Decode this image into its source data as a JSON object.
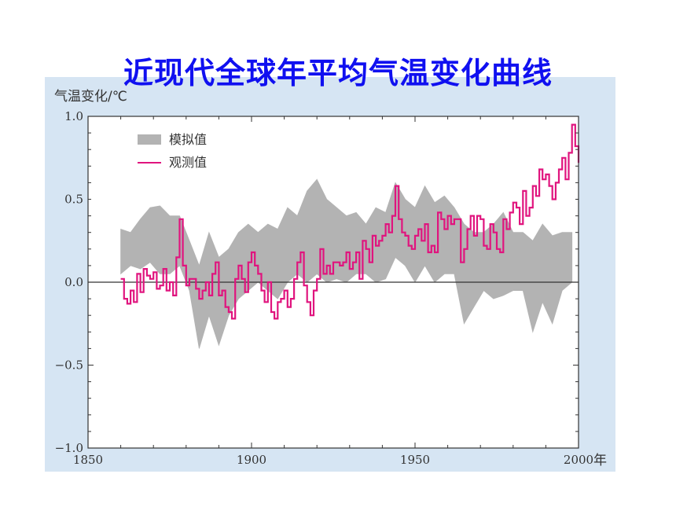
{
  "slide": {
    "title": "近现代全球年平均气温变化曲线"
  },
  "colors": {
    "title": "#1010f0",
    "panel_background": "#d6e5f3",
    "plot_background": "#ffffff",
    "simulated_band": "#b3b3b3",
    "observed_line": "#e0147e",
    "axis": "#333333"
  },
  "chart_data": {
    "type": "line",
    "title": "",
    "ylabel": "气温变化/℃",
    "xlabel": "年",
    "xlim": [
      1850,
      2000
    ],
    "ylim": [
      -1.0,
      1.0
    ],
    "xticks": [
      1850,
      1900,
      1950,
      2000
    ],
    "xtick_labels": [
      "1850",
      "1900",
      "1950",
      "2000"
    ],
    "yticks": [
      1.0,
      0.5,
      0.0,
      -0.5,
      -1.0
    ],
    "ytick_labels": [
      "1.0",
      "0.5",
      "0.0",
      "−0.5",
      "−1.0"
    ],
    "zero_line": true,
    "grid": false,
    "legend_position": "top-left",
    "legend": [
      "模拟值",
      "观测值"
    ],
    "series": [
      {
        "name": "模拟值",
        "kind": "band",
        "x": [
          1860,
          1863,
          1866,
          1869,
          1872,
          1875,
          1878,
          1881,
          1884,
          1887,
          1890,
          1893,
          1896,
          1899,
          1902,
          1905,
          1908,
          1911,
          1914,
          1917,
          1920,
          1923,
          1926,
          1929,
          1932,
          1935,
          1938,
          1941,
          1944,
          1947,
          1950,
          1953,
          1956,
          1959,
          1962,
          1965,
          1968,
          1971,
          1974,
          1977,
          1980,
          1983,
          1986,
          1989,
          1992,
          1995,
          1998
        ],
        "low": [
          0.05,
          0.1,
          0.08,
          0.12,
          0.05,
          0.05,
          0.1,
          -0.05,
          -0.4,
          -0.2,
          -0.38,
          -0.2,
          -0.1,
          -0.05,
          0.0,
          -0.05,
          -0.1,
          0.0,
          0.05,
          0.0,
          0.05,
          0.0,
          0.02,
          0.0,
          0.05,
          0.05,
          0.0,
          0.02,
          0.15,
          0.1,
          0.0,
          0.1,
          0.0,
          0.05,
          0.05,
          -0.25,
          -0.15,
          -0.05,
          -0.1,
          -0.08,
          -0.05,
          -0.05,
          -0.3,
          -0.12,
          -0.25,
          -0.05,
          0.0
        ],
        "high": [
          0.32,
          0.3,
          0.38,
          0.45,
          0.46,
          0.4,
          0.4,
          0.25,
          0.1,
          0.3,
          0.15,
          0.2,
          0.3,
          0.35,
          0.3,
          0.35,
          0.32,
          0.45,
          0.4,
          0.55,
          0.62,
          0.5,
          0.45,
          0.4,
          0.42,
          0.35,
          0.45,
          0.42,
          0.6,
          0.5,
          0.45,
          0.58,
          0.48,
          0.52,
          0.45,
          0.35,
          0.3,
          0.3,
          0.35,
          0.42,
          0.3,
          0.3,
          0.25,
          0.35,
          0.28,
          0.3,
          0.3
        ]
      },
      {
        "name": "观测值",
        "kind": "line",
        "x": [
          1860,
          1861,
          1862,
          1863,
          1864,
          1865,
          1866,
          1867,
          1868,
          1869,
          1870,
          1871,
          1872,
          1873,
          1874,
          1875,
          1876,
          1877,
          1878,
          1879,
          1880,
          1881,
          1882,
          1883,
          1884,
          1885,
          1886,
          1887,
          1888,
          1889,
          1890,
          1891,
          1892,
          1893,
          1894,
          1895,
          1896,
          1897,
          1898,
          1899,
          1900,
          1901,
          1902,
          1903,
          1904,
          1905,
          1906,
          1907,
          1908,
          1909,
          1910,
          1911,
          1912,
          1913,
          1914,
          1915,
          1916,
          1917,
          1918,
          1919,
          1920,
          1921,
          1922,
          1923,
          1924,
          1925,
          1926,
          1927,
          1928,
          1929,
          1930,
          1931,
          1932,
          1933,
          1934,
          1935,
          1936,
          1937,
          1938,
          1939,
          1940,
          1941,
          1942,
          1943,
          1944,
          1945,
          1946,
          1947,
          1948,
          1949,
          1950,
          1951,
          1952,
          1953,
          1954,
          1955,
          1956,
          1957,
          1958,
          1959,
          1960,
          1961,
          1962,
          1963,
          1964,
          1965,
          1966,
          1967,
          1968,
          1969,
          1970,
          1971,
          1972,
          1973,
          1974,
          1975,
          1976,
          1977,
          1978,
          1979,
          1980,
          1981,
          1982,
          1983,
          1984,
          1985,
          1986,
          1987,
          1988,
          1989,
          1990,
          1991,
          1992,
          1993,
          1994,
          1995,
          1996,
          1997,
          1998,
          1999,
          2000
        ],
        "y": [
          0.02,
          -0.1,
          -0.13,
          -0.05,
          -0.12,
          0.05,
          -0.06,
          0.08,
          0.04,
          0.02,
          0.06,
          -0.04,
          -0.02,
          0.08,
          -0.05,
          0.0,
          -0.08,
          0.15,
          0.38,
          0.1,
          -0.02,
          0.02,
          0.02,
          -0.04,
          -0.1,
          -0.05,
          0.0,
          -0.08,
          0.05,
          0.12,
          -0.08,
          -0.05,
          -0.15,
          -0.18,
          -0.22,
          0.02,
          0.1,
          0.02,
          -0.06,
          0.12,
          0.18,
          0.1,
          0.05,
          -0.05,
          -0.12,
          0.0,
          -0.18,
          -0.22,
          -0.12,
          -0.1,
          -0.05,
          -0.15,
          -0.1,
          0.02,
          0.12,
          0.18,
          -0.02,
          -0.12,
          -0.2,
          -0.05,
          0.02,
          0.2,
          0.05,
          0.1,
          0.05,
          0.12,
          0.12,
          0.1,
          0.12,
          0.18,
          0.08,
          0.12,
          0.18,
          0.02,
          0.25,
          0.2,
          0.12,
          0.28,
          0.22,
          0.25,
          0.28,
          0.35,
          0.3,
          0.4,
          0.58,
          0.38,
          0.3,
          0.28,
          0.22,
          0.2,
          0.28,
          0.32,
          0.25,
          0.35,
          0.18,
          0.22,
          0.18,
          0.42,
          0.38,
          0.32,
          0.4,
          0.35,
          0.38,
          0.38,
          0.12,
          0.2,
          0.32,
          0.4,
          0.28,
          0.4,
          0.38,
          0.22,
          0.2,
          0.35,
          0.3,
          0.2,
          0.18,
          0.38,
          0.32,
          0.42,
          0.48,
          0.45,
          0.35,
          0.55,
          0.4,
          0.45,
          0.58,
          0.52,
          0.68,
          0.62,
          0.65,
          0.58,
          0.5,
          0.6,
          0.68,
          0.75,
          0.62,
          0.78,
          0.95,
          0.82,
          0.72
        ]
      }
    ]
  }
}
